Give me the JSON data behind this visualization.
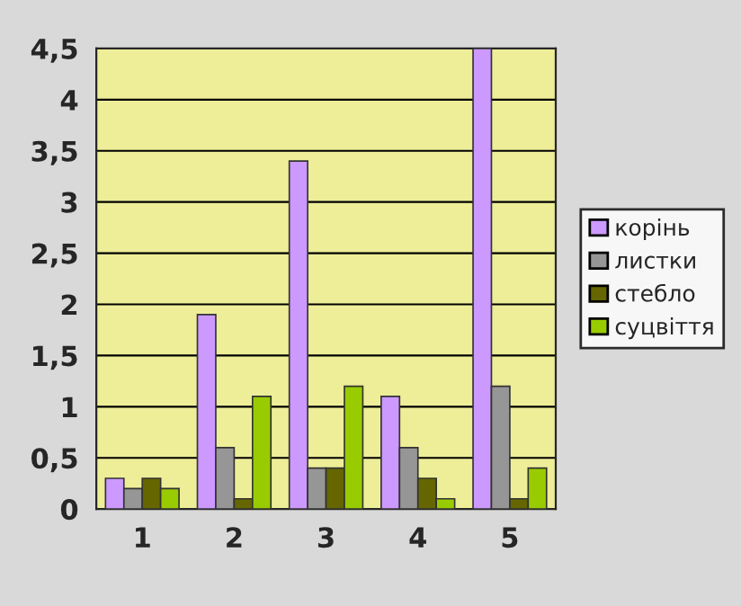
{
  "chart_data": {
    "type": "bar",
    "categories": [
      "1",
      "2",
      "3",
      "4",
      "5"
    ],
    "series": [
      {
        "name": "корінь",
        "color": "#cc99ff",
        "values": [
          0.3,
          1.9,
          3.4,
          1.1,
          4.5
        ]
      },
      {
        "name": "листки",
        "color": "#969696",
        "values": [
          0.2,
          0.6,
          0.4,
          0.6,
          1.2
        ]
      },
      {
        "name": "стебло",
        "color": "#666600",
        "values": [
          0.3,
          0.1,
          0.4,
          0.3,
          0.1
        ]
      },
      {
        "name": "суцвіття",
        "color": "#99cc00",
        "values": [
          0.2,
          1.1,
          1.2,
          0.1,
          0.4
        ]
      }
    ],
    "ylim": [
      0,
      4.5
    ],
    "yticks": [
      0,
      {
        "value": 0.5,
        "label": "0,5"
      },
      1,
      {
        "value": 1.5,
        "label": "1,5"
      },
      2,
      {
        "value": 2.5,
        "label": "2,5"
      },
      3,
      {
        "value": 3.5,
        "label": "3,5"
      },
      4,
      {
        "value": 4.5,
        "label": "4,5"
      }
    ],
    "grid": "y",
    "legend": "right"
  }
}
